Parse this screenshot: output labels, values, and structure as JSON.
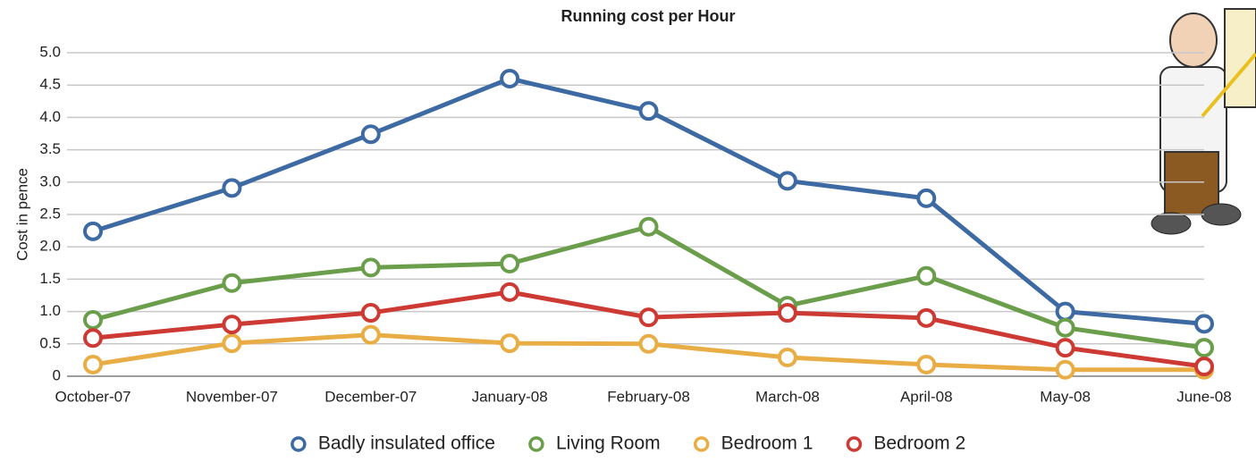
{
  "chart_data": {
    "type": "line",
    "title": "Running cost per Hour",
    "y_label": "Cost in pence",
    "categories": [
      "October-07",
      "November-07",
      "December-07",
      "January-08",
      "February-08",
      "March-08",
      "April-08",
      "May-08",
      "June-08"
    ],
    "series": [
      {
        "name": "Badly insulated office",
        "color": "#3d6aa3",
        "values": [
          2.24,
          2.91,
          3.74,
          4.6,
          4.1,
          3.02,
          2.75,
          1.0,
          0.81
        ]
      },
      {
        "name": "Living Room",
        "color": "#6a9e4b",
        "values": [
          0.87,
          1.44,
          1.68,
          1.74,
          2.31,
          1.09,
          1.55,
          0.75,
          0.44
        ]
      },
      {
        "name": "Bedroom 1",
        "color": "#e9ad45",
        "values": [
          0.18,
          0.51,
          0.64,
          0.51,
          0.5,
          0.29,
          0.18,
          0.1,
          0.1
        ]
      },
      {
        "name": "Bedroom 2",
        "color": "#cc3a33",
        "values": [
          0.59,
          0.8,
          0.98,
          1.3,
          0.91,
          0.98,
          0.9,
          0.44,
          0.15
        ]
      }
    ],
    "ylim": [
      0,
      5
    ],
    "yticks": [
      0,
      0.5,
      {
        "value": 1,
        "label": "1.0"
      },
      1.5,
      {
        "value": 2,
        "label": "2.0"
      },
      2.5,
      {
        "value": 3,
        "label": "3.0"
      },
      3.5,
      {
        "value": 4,
        "label": "4.0"
      },
      4.5,
      {
        "value": 5,
        "label": "5.0"
      }
    ],
    "grid": true,
    "legend": "bottom"
  }
}
